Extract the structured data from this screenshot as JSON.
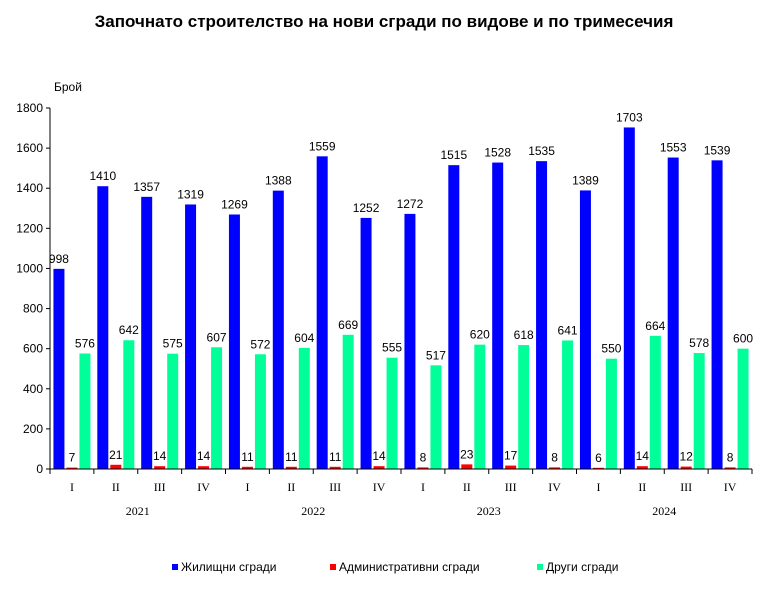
{
  "chart_data": {
    "type": "bar",
    "title": "Започнато строителство на нови сгради по видове и по тримесечия",
    "ylabel": "Брой",
    "ylim": [
      0,
      1800
    ],
    "yticks": [
      0,
      200,
      400,
      600,
      800,
      1000,
      1200,
      1400,
      1600,
      1800
    ],
    "grid": false,
    "legend_position": "bottom",
    "categories": [
      "I",
      "II",
      "III",
      "IV",
      "I",
      "II",
      "III",
      "IV",
      "I",
      "II",
      "III",
      "IV",
      "I",
      "II",
      "III",
      "IV"
    ],
    "years": [
      "2021",
      "2022",
      "2023",
      "2024"
    ],
    "series": [
      {
        "name": "Жилищни сгради",
        "color": "#0000ff",
        "values": [
          998,
          1410,
          1357,
          1319,
          1269,
          1388,
          1559,
          1252,
          1272,
          1515,
          1528,
          1535,
          1389,
          1703,
          1553,
          1539
        ]
      },
      {
        "name": "Административни сгради",
        "color": "#ff0000",
        "values": [
          7,
          21,
          14,
          14,
          11,
          11,
          11,
          14,
          8,
          23,
          17,
          8,
          6,
          14,
          12,
          8
        ]
      },
      {
        "name": "Други сгради",
        "color": "#00ff99",
        "values": [
          576,
          642,
          575,
          607,
          572,
          604,
          669,
          555,
          517,
          620,
          618,
          641,
          550,
          664,
          578,
          600
        ]
      }
    ]
  }
}
